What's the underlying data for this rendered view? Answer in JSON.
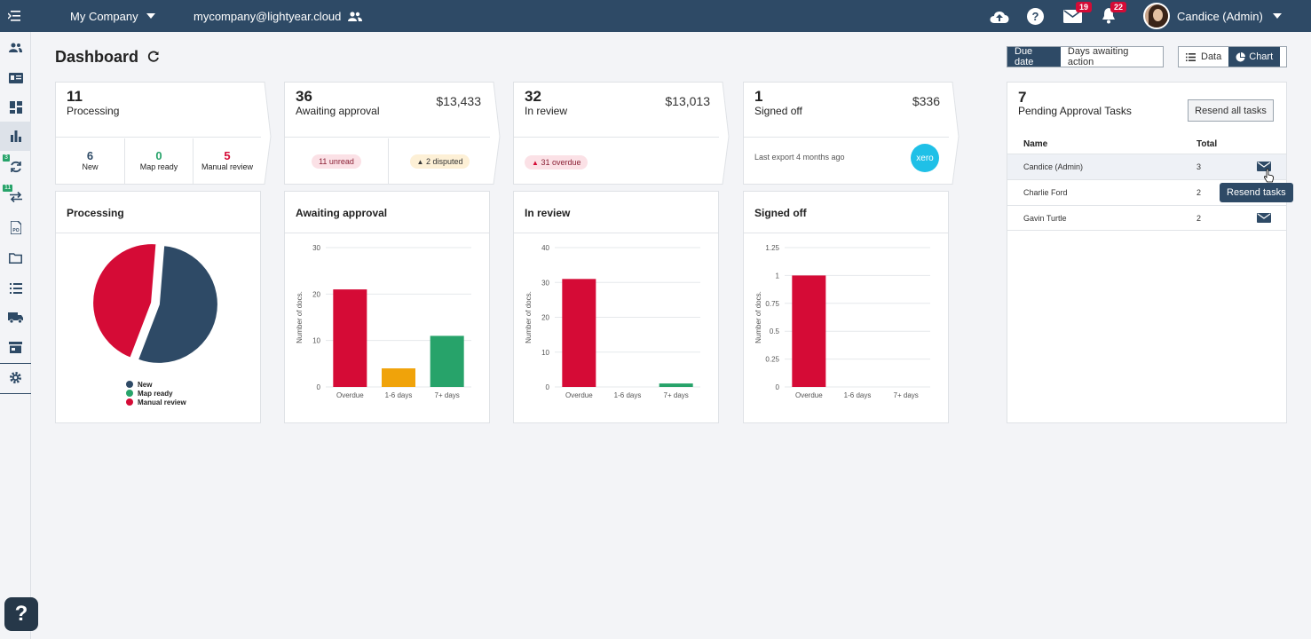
{
  "header": {
    "company": "My Company",
    "email": "mycompany@lightyear.cloud",
    "mail_badge": "19",
    "notif_badge": "22",
    "user": "Candice (Admin)"
  },
  "sidebar": {
    "badge_a": "3",
    "badge_b": "11"
  },
  "page": {
    "title": "Dashboard",
    "toggle_due": "Due date",
    "toggle_days": "Days awaiting action",
    "view_data": "Data",
    "view_chart": "Chart"
  },
  "summary": {
    "processing": {
      "count": "11",
      "label": "Processing",
      "new_count": "6",
      "new_label": "New",
      "map_count": "0",
      "map_label": "Map ready",
      "manual_count": "5",
      "manual_label": "Manual review"
    },
    "awaiting": {
      "count": "36",
      "label": "Awaiting approval",
      "amount": "$13,433",
      "unread": "11 unread",
      "disputed": "2 disputed"
    },
    "review": {
      "count": "32",
      "label": "In review",
      "amount": "$13,013",
      "overdue": "31 overdue"
    },
    "signed": {
      "count": "1",
      "label": "Signed off",
      "amount": "$336",
      "export": "Last export 4 months ago",
      "xero": "xero"
    }
  },
  "charts": {
    "processing_title": "Processing",
    "awaiting_title": "Awaiting approval",
    "review_title": "In review",
    "signed_title": "Signed off"
  },
  "chart_data": [
    {
      "type": "pie",
      "title": "Processing",
      "categories": [
        "New",
        "Map ready",
        "Manual review"
      ],
      "values": [
        6,
        0,
        5
      ],
      "colors": [
        "#2e4a66",
        "#27a36a",
        "#d50b36"
      ],
      "legend": "bottom"
    },
    {
      "type": "bar",
      "title": "Awaiting approval",
      "categories": [
        "Overdue",
        "1-6 days",
        "7+ days"
      ],
      "values": [
        21,
        4,
        11
      ],
      "colors": [
        "#d50b36",
        "#f0a30a",
        "#27a36a"
      ],
      "ylabel": "Number of docs.",
      "ylim": [
        0,
        30
      ],
      "yticks": [
        "0",
        "10",
        "20",
        "30"
      ],
      "grid": true
    },
    {
      "type": "bar",
      "title": "In review",
      "categories": [
        "Overdue",
        "1-6 days",
        "7+ days"
      ],
      "values": [
        31,
        0,
        1
      ],
      "colors": [
        "#d50b36",
        "#f0a30a",
        "#27a36a"
      ],
      "ylabel": "Number of docs.",
      "ylim": [
        0,
        40
      ],
      "yticks": [
        "0",
        "10",
        "20",
        "30",
        "40"
      ],
      "grid": true
    },
    {
      "type": "bar",
      "title": "Signed off",
      "categories": [
        "Overdue",
        "1-6 days",
        "7+ days"
      ],
      "values": [
        1,
        0,
        0
      ],
      "colors": [
        "#d50b36",
        "#f0a30a",
        "#27a36a"
      ],
      "ylabel": "Number of docs.",
      "ylim": [
        0,
        1.25
      ],
      "yticks": [
        "0",
        "0.25",
        "0.5",
        "0.75",
        "1",
        "1.25"
      ],
      "grid": true
    }
  ],
  "tasks": {
    "count": "7",
    "label": "Pending Approval Tasks",
    "resend_all": "Resend all tasks",
    "col_name": "Name",
    "col_total": "Total",
    "rows": [
      {
        "name": "Candice (Admin)",
        "total": "3"
      },
      {
        "name": "Charlie Ford",
        "total": "2"
      },
      {
        "name": "Gavin Turtle",
        "total": "2"
      }
    ],
    "tooltip": "Resend tasks"
  }
}
